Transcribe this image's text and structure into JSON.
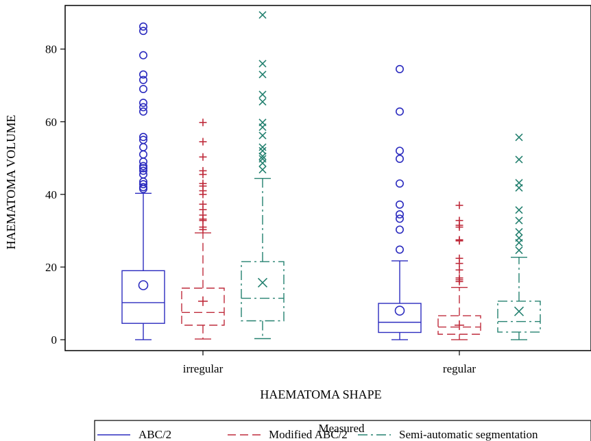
{
  "chart_data": {
    "type": "box",
    "title": "",
    "xlabel": "HAEMATOMA SHAPE",
    "ylabel": "HAEMATOMA VOLUME",
    "categories": [
      "irregular",
      "regular"
    ],
    "ylim": [
      -3,
      92
    ],
    "yticks": [
      0,
      20,
      40,
      60,
      80
    ],
    "grid": false,
    "legend": {
      "title": "Measured",
      "position": "bottom",
      "entries": [
        "ABC/2",
        "Modified ABC/2",
        "Semi-automatic segmentation"
      ]
    },
    "series": [
      {
        "name": "ABC/2",
        "color": "#2b2bbf",
        "dash": "solid",
        "marker": "circle",
        "boxes": [
          {
            "category": "irregular",
            "min": 0,
            "q1": 4.5,
            "median": 10.2,
            "q3": 19.0,
            "max": 40.3,
            "mean": 15.0,
            "outliers": [
              86.2,
              85.0,
              78.3,
              73.0,
              71.5,
              69.0,
              65.2,
              64.0,
              62.8,
              55.8,
              55.0,
              53.0,
              51.0,
              49.0,
              47.8,
              47.2,
              46.5,
              45.5,
              43.5,
              42.8,
              42.0,
              41.5
            ]
          },
          {
            "category": "regular",
            "min": 0,
            "q1": 2.0,
            "median": 4.8,
            "q3": 10.0,
            "max": 21.7,
            "mean": 8.0,
            "outliers": [
              74.5,
              62.8,
              52.0,
              49.8,
              43.0,
              37.2,
              34.5,
              33.3,
              30.3,
              24.8
            ]
          }
        ]
      },
      {
        "name": "Modified ABC/2",
        "color": "#bf2b3b",
        "dash": "long-dash",
        "marker": "plus",
        "boxes": [
          {
            "category": "irregular",
            "min": 0.2,
            "q1": 4.0,
            "median": 7.5,
            "q3": 14.2,
            "max": 29.4,
            "mean": 10.6,
            "outliers": [
              59.8,
              54.5,
              50.3,
              46.5,
              45.5,
              43.0,
              42.3,
              41.0,
              40.0,
              37.3,
              35.8,
              34.3,
              33.2,
              32.8,
              31.0,
              30.3
            ]
          },
          {
            "category": "regular",
            "min": 0,
            "q1": 1.5,
            "median": 3.5,
            "q3": 6.6,
            "max": 14.4,
            "mean": 4.0,
            "outliers": [
              37.0,
              32.8,
              31.5,
              31.0,
              27.5,
              27.2,
              22.4,
              21.0,
              19.2,
              17.0,
              16.5,
              16.0
            ]
          }
        ]
      },
      {
        "name": "Semi-automatic segmentation",
        "color": "#23806f",
        "dash": "dash-dot",
        "marker": "x",
        "boxes": [
          {
            "category": "irregular",
            "min": 0.3,
            "q1": 5.2,
            "median": 11.4,
            "q3": 21.5,
            "max": 44.4,
            "mean": 15.7,
            "outliers": [
              89.4,
              76.0,
              73.0,
              67.5,
              65.5,
              59.8,
              58.5,
              56.2,
              53.0,
              52.0,
              50.5,
              49.8,
              48.6,
              46.8
            ]
          },
          {
            "category": "regular",
            "min": 0,
            "q1": 2.1,
            "median": 5.0,
            "q3": 10.6,
            "max": 22.7,
            "mean": 7.8,
            "outliers": [
              55.7,
              49.6,
              43.2,
              41.8,
              35.7,
              32.8,
              29.7,
              28.0,
              26.7,
              24.6
            ]
          }
        ]
      }
    ]
  }
}
